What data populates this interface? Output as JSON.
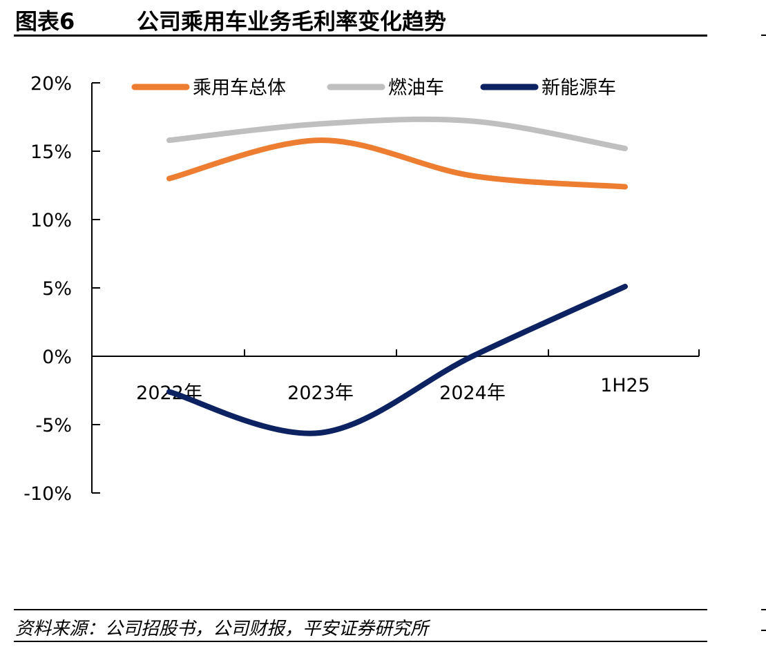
{
  "header": {
    "figure_label": "图表6",
    "title": "公司乘用车业务毛利率变化趋势"
  },
  "source": "资料来源：公司招股书，公司财报，平安证券研究所",
  "chart_data": {
    "type": "line",
    "title": "公司乘用车业务毛利率变化趋势",
    "categories": [
      "2022年",
      "2023年",
      "2024年",
      "1H25"
    ],
    "y_ticks": [
      "20%",
      "15%",
      "10%",
      "5%",
      "0%",
      "-5%",
      "-10%"
    ],
    "ylim": [
      -10,
      20
    ],
    "y_unit": "%",
    "grid": false,
    "legend_position": "top",
    "smooth": true,
    "series": [
      {
        "name": "乘用车总体",
        "color": "#ED7D31",
        "values": [
          13.0,
          15.8,
          13.2,
          12.4
        ]
      },
      {
        "name": "燃油车",
        "color": "#BFBFBF",
        "values": [
          15.8,
          17.0,
          17.2,
          15.2
        ]
      },
      {
        "name": "新能源车",
        "color": "#0D2260",
        "values": [
          -2.6,
          -5.6,
          0.0,
          5.1
        ]
      }
    ]
  }
}
